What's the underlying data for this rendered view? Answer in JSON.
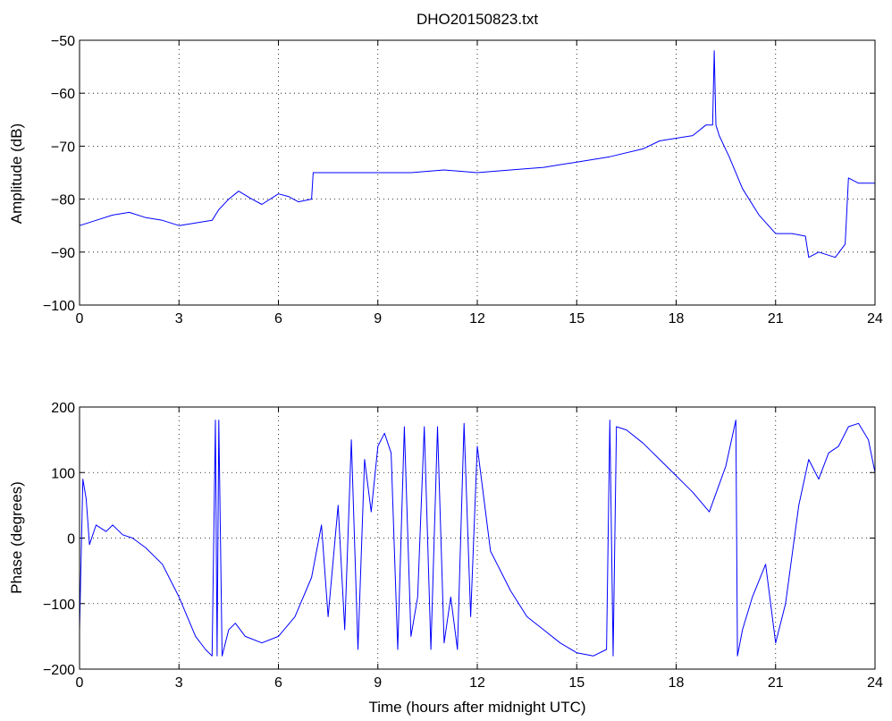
{
  "figure_title": "DHO20150823.txt",
  "chart_data": [
    {
      "type": "line",
      "title": "DHO20150823.txt",
      "xlabel": "",
      "ylabel": "Amplitude (dB)",
      "xlim": [
        0,
        24
      ],
      "ylim": [
        -100,
        -50
      ],
      "xticks": [
        "0",
        "3",
        "6",
        "9",
        "12",
        "15",
        "18",
        "21",
        "24"
      ],
      "yticks": [
        "−50",
        "−60",
        "−70",
        "−80",
        "−90",
        "−100"
      ],
      "grid": true,
      "color": "#0000ff",
      "series": [
        {
          "x": [
            0,
            0.5,
            1,
            1.5,
            2,
            2.5,
            3,
            3.5,
            4,
            4.2,
            4.5,
            4.8,
            5.2,
            5.5,
            6,
            6.3,
            6.6,
            7,
            7.05,
            7.1,
            8,
            9,
            10,
            11,
            12,
            13,
            14,
            15,
            16,
            17,
            17.5,
            18,
            18.5,
            18.9,
            19.1,
            19.15,
            19.2,
            19.3,
            19.6,
            20,
            20.5,
            21,
            21.5,
            21.9,
            22,
            22.3,
            22.8,
            23.1,
            23.2,
            23.5,
            24
          ],
          "y": [
            -85,
            -84,
            -83,
            -82.5,
            -83.5,
            -84,
            -85,
            -84.5,
            -84,
            -82,
            -80,
            -78.5,
            -80,
            -81,
            -79,
            -79.5,
            -80.5,
            -80,
            -75,
            -75,
            -75,
            -75,
            -75,
            -74.5,
            -75,
            -74.5,
            -74,
            -73,
            -72,
            -70.5,
            -69,
            -68.5,
            -68,
            -66,
            -66,
            -52,
            -66,
            -68,
            -72,
            -78,
            -83,
            -86.5,
            -86.5,
            -87,
            -91,
            -90,
            -91,
            -88.5,
            -76,
            -77,
            -77
          ]
        }
      ]
    },
    {
      "type": "line",
      "title": "",
      "xlabel": "Time (hours after midnight UTC)",
      "ylabel": "Phase (degrees)",
      "xlim": [
        0,
        24
      ],
      "ylim": [
        -200,
        200
      ],
      "xticks": [
        "0",
        "3",
        "6",
        "9",
        "12",
        "15",
        "18",
        "21",
        "24"
      ],
      "yticks": [
        "200",
        "100",
        "0",
        "−100",
        "−200"
      ],
      "grid": true,
      "color": "#0000ff",
      "series": [
        {
          "x": [
            0,
            0.1,
            0.2,
            0.3,
            0.5,
            0.8,
            1,
            1.3,
            1.6,
            2,
            2.5,
            3,
            3.5,
            3.8,
            4,
            4.1,
            4.15,
            4.2,
            4.3,
            4.5,
            4.7,
            5,
            5.5,
            6,
            6.5,
            7,
            7.3,
            7.5,
            7.8,
            8,
            8.2,
            8.4,
            8.6,
            8.8,
            9,
            9.2,
            9.4,
            9.6,
            9.8,
            10,
            10.2,
            10.4,
            10.6,
            10.8,
            11,
            11.2,
            11.4,
            11.6,
            11.8,
            12,
            12.2,
            12.4,
            12.7,
            13,
            13.5,
            14,
            14.5,
            15,
            15.5,
            15.9,
            16,
            16.1,
            16.2,
            16.5,
            17,
            17.5,
            18,
            18.5,
            19,
            19.5,
            19.8,
            19.85,
            20,
            20.3,
            20.7,
            21,
            21.3,
            21.7,
            22,
            22.3,
            22.6,
            22.9,
            23.2,
            23.5,
            23.8,
            24
          ],
          "y": [
            -140,
            90,
            60,
            -10,
            20,
            10,
            20,
            5,
            0,
            -15,
            -40,
            -90,
            -150,
            -170,
            -180,
            180,
            -180,
            180,
            -180,
            -140,
            -130,
            -150,
            -160,
            -150,
            -120,
            -60,
            20,
            -120,
            50,
            -140,
            150,
            -170,
            120,
            40,
            140,
            160,
            130,
            -170,
            170,
            -150,
            -90,
            170,
            -170,
            170,
            -160,
            -90,
            -170,
            175,
            -120,
            140,
            60,
            -20,
            -50,
            -80,
            -120,
            -140,
            -160,
            -175,
            -180,
            -170,
            180,
            -180,
            170,
            165,
            145,
            120,
            95,
            70,
            40,
            110,
            180,
            -180,
            -140,
            -90,
            -40,
            -160,
            -100,
            50,
            120,
            90,
            130,
            140,
            170,
            175,
            150,
            100
          ]
        }
      ]
    }
  ]
}
